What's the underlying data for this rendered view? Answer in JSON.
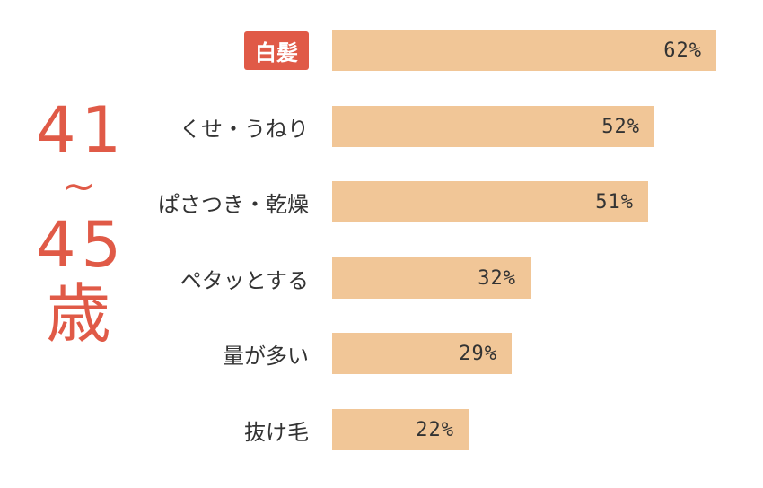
{
  "age_group": {
    "line1": "41",
    "tilde": "~",
    "line2": "45",
    "unit": "歳"
  },
  "chart_data": {
    "type": "bar",
    "orientation": "horizontal",
    "categories": [
      "白髪",
      "くせ・うねり",
      "ぱさつき・乾燥",
      "ペタッとする",
      "量が多い",
      "抜け毛"
    ],
    "values": [
      62,
      52,
      51,
      32,
      29,
      22
    ],
    "value_labels": [
      "62%",
      "52%",
      "51%",
      "32%",
      "29%",
      "22%"
    ],
    "highlight_index": 0,
    "xlim": [
      0,
      62
    ],
    "colors": {
      "bar": "#f1c697",
      "highlight": "#e05a47"
    }
  }
}
